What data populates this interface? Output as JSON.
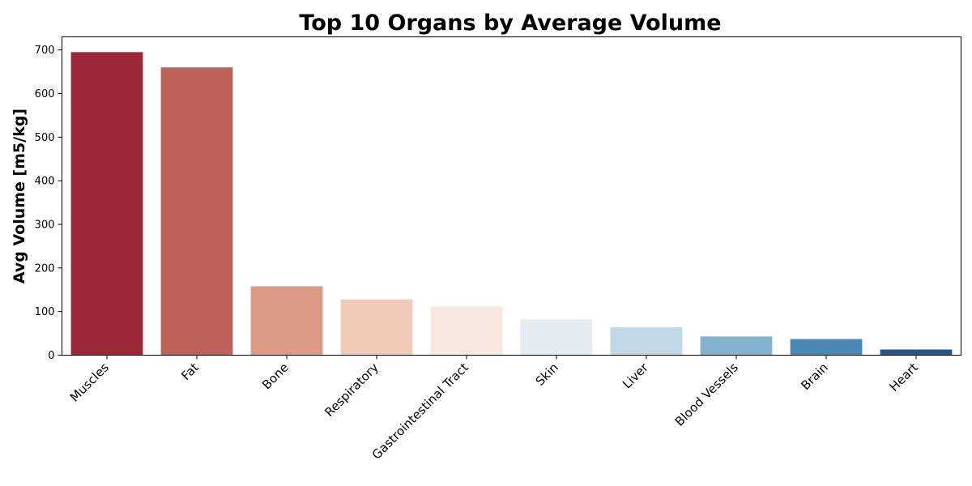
{
  "chart_data": {
    "type": "bar",
    "title": "Top 10 Organs by Average Volume",
    "xlabel": "",
    "ylabel": "Avg Volume [m5/kg]",
    "categories": [
      "Muscles",
      "Fat",
      "Bone",
      "Respiratory",
      "Gastrointestinal Tract",
      "Skin",
      "Liver",
      "Blood Vessels",
      "Brain",
      "Heart"
    ],
    "values": [
      695,
      660,
      158,
      128,
      112,
      82,
      64,
      43,
      37,
      13
    ],
    "colors": [
      "#9b2738",
      "#bd6258",
      "#dc9984",
      "#f1cbb8",
      "#f7e8e1",
      "#e5ecf1",
      "#c1d8e6",
      "#84b3cf",
      "#4a88b5",
      "#24568a"
    ],
    "ylim": [
      0,
      730
    ],
    "yticks": [
      0,
      100,
      200,
      300,
      400,
      500,
      600,
      700
    ],
    "grid": false,
    "legend": "none"
  }
}
